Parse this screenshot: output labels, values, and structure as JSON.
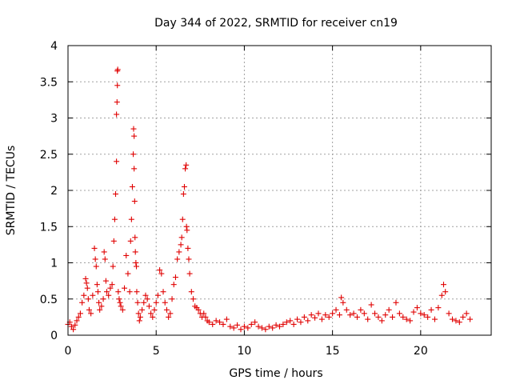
{
  "chart_data": {
    "type": "scatter",
    "title": "Day 344 of 2022, SRMTID for receiver cn19",
    "xlabel": "GPS time / hours",
    "ylabel": "SRMTID / TECUs",
    "xlim": [
      0,
      24
    ],
    "ylim": [
      0,
      4
    ],
    "xticks": [
      0,
      5,
      10,
      15,
      20
    ],
    "xtick_labels": [
      "0",
      "5",
      "10",
      "15",
      "20"
    ],
    "yticks": [
      0,
      0.5,
      1,
      1.5,
      2,
      2.5,
      3,
      3.5,
      4
    ],
    "ytick_labels": [
      "0",
      "0.5",
      "1",
      "1.5",
      "2",
      "2.5",
      "3",
      "3.5",
      "4"
    ],
    "grid": true,
    "marker": "+",
    "color": "#e00000",
    "series": [
      {
        "name": "SRMTID",
        "x": [
          0.0,
          0.1,
          0.2,
          0.3,
          0.4,
          0.5,
          0.6,
          0.7,
          0.8,
          0.9,
          1.0,
          1.05,
          1.1,
          1.15,
          1.2,
          1.3,
          1.4,
          1.5,
          1.55,
          1.6,
          1.65,
          1.7,
          1.75,
          1.8,
          1.9,
          2.0,
          2.05,
          2.1,
          2.15,
          2.2,
          2.3,
          2.4,
          2.5,
          2.55,
          2.6,
          2.65,
          2.7,
          2.75,
          2.75,
          2.78,
          2.8,
          2.8,
          2.82,
          2.85,
          2.9,
          2.95,
          3.0,
          3.1,
          3.2,
          3.3,
          3.4,
          3.5,
          3.55,
          3.6,
          3.65,
          3.7,
          3.72,
          3.75,
          3.75,
          3.78,
          3.8,
          3.82,
          3.85,
          3.88,
          3.9,
          3.95,
          4.0,
          4.05,
          4.1,
          4.2,
          4.3,
          4.4,
          4.5,
          4.6,
          4.7,
          4.8,
          4.9,
          5.0,
          5.1,
          5.2,
          5.3,
          5.4,
          5.5,
          5.6,
          5.7,
          5.8,
          5.9,
          6.0,
          6.1,
          6.2,
          6.3,
          6.4,
          6.45,
          6.5,
          6.55,
          6.6,
          6.65,
          6.7,
          6.72,
          6.75,
          6.8,
          6.85,
          6.9,
          7.0,
          7.1,
          7.2,
          7.3,
          7.4,
          7.5,
          7.6,
          7.7,
          7.8,
          7.9,
          8.0,
          8.2,
          8.4,
          8.6,
          8.8,
          9.0,
          9.2,
          9.4,
          9.6,
          9.8,
          10.0,
          10.2,
          10.4,
          10.6,
          10.8,
          11.0,
          11.2,
          11.4,
          11.6,
          11.8,
          12.0,
          12.2,
          12.4,
          12.6,
          12.8,
          13.0,
          13.2,
          13.4,
          13.6,
          13.8,
          14.0,
          14.2,
          14.4,
          14.6,
          14.8,
          15.0,
          15.2,
          15.4,
          15.5,
          15.6,
          15.8,
          16.0,
          16.2,
          16.4,
          16.6,
          16.8,
          17.0,
          17.2,
          17.4,
          17.6,
          17.8,
          18.0,
          18.2,
          18.4,
          18.6,
          18.8,
          19.0,
          19.2,
          19.4,
          19.6,
          19.8,
          20.0,
          20.2,
          20.4,
          20.6,
          20.8,
          21.0,
          21.2,
          21.3,
          21.4,
          21.6,
          21.8,
          22.0,
          22.2,
          22.4,
          22.6,
          22.8
        ],
        "y": [
          0.15,
          0.18,
          0.12,
          0.08,
          0.14,
          0.2,
          0.25,
          0.3,
          0.45,
          0.55,
          0.78,
          0.72,
          0.65,
          0.5,
          0.35,
          0.3,
          0.55,
          1.2,
          1.05,
          0.95,
          0.7,
          0.6,
          0.45,
          0.35,
          0.4,
          0.5,
          1.15,
          1.05,
          0.75,
          0.6,
          0.55,
          0.65,
          0.7,
          0.95,
          1.3,
          1.6,
          1.95,
          2.4,
          3.05,
          3.22,
          3.45,
          3.65,
          3.67,
          0.6,
          0.5,
          0.45,
          0.4,
          0.35,
          0.65,
          1.1,
          0.85,
          0.6,
          1.3,
          1.6,
          2.05,
          2.5,
          2.85,
          2.75,
          2.3,
          1.85,
          1.35,
          1.15,
          1.0,
          0.95,
          0.6,
          0.45,
          0.3,
          0.2,
          0.25,
          0.35,
          0.45,
          0.55,
          0.5,
          0.4,
          0.3,
          0.25,
          0.35,
          0.45,
          0.55,
          0.9,
          0.85,
          0.6,
          0.45,
          0.35,
          0.25,
          0.3,
          0.5,
          0.7,
          0.8,
          1.05,
          1.15,
          1.25,
          1.35,
          1.6,
          1.95,
          2.05,
          2.3,
          2.35,
          1.5,
          1.45,
          1.2,
          1.05,
          0.85,
          0.6,
          0.5,
          0.4,
          0.38,
          0.35,
          0.3,
          0.25,
          0.3,
          0.25,
          0.2,
          0.18,
          0.15,
          0.2,
          0.18,
          0.15,
          0.22,
          0.12,
          0.1,
          0.14,
          0.08,
          0.12,
          0.1,
          0.15,
          0.18,
          0.12,
          0.1,
          0.08,
          0.12,
          0.1,
          0.14,
          0.12,
          0.15,
          0.18,
          0.2,
          0.15,
          0.22,
          0.18,
          0.25,
          0.2,
          0.28,
          0.24,
          0.3,
          0.22,
          0.28,
          0.25,
          0.3,
          0.35,
          0.28,
          0.52,
          0.45,
          0.35,
          0.28,
          0.3,
          0.25,
          0.35,
          0.3,
          0.22,
          0.42,
          0.3,
          0.25,
          0.2,
          0.28,
          0.35,
          0.25,
          0.45,
          0.3,
          0.25,
          0.22,
          0.2,
          0.32,
          0.38,
          0.3,
          0.28,
          0.25,
          0.35,
          0.22,
          0.38,
          0.55,
          0.7,
          0.6,
          0.3,
          0.22,
          0.2,
          0.18,
          0.25,
          0.3,
          0.22
        ]
      }
    ]
  }
}
